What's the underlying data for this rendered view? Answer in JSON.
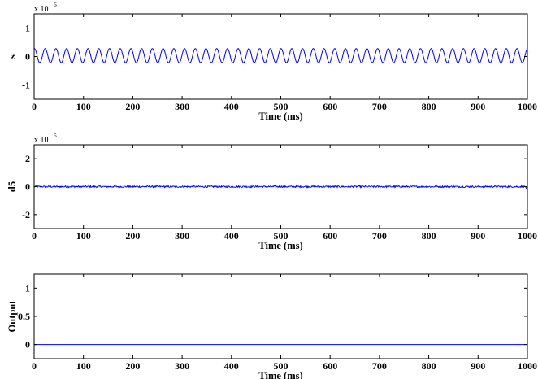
{
  "figure": {
    "background": "#ffffff"
  },
  "chart_data": [
    {
      "type": "line",
      "ylabel": "s",
      "xlabel": "Time (ms)",
      "xlim": [
        0,
        1000
      ],
      "ylim": [
        -1.5,
        1.5
      ],
      "y_scale_base": "x 10",
      "y_scale_exp": "6",
      "xticks": [
        0,
        100,
        200,
        300,
        400,
        500,
        600,
        700,
        800,
        900,
        1000
      ],
      "yticks": [
        -1,
        0,
        1
      ],
      "grid": false,
      "color": "#0000ff",
      "series": [
        {
          "signal": "sinusoid",
          "cycles_over_range": 46,
          "amplitude": 0.25,
          "offset": 0.03
        }
      ]
    },
    {
      "type": "line",
      "ylabel": "d5",
      "xlabel": "Time (ms)",
      "xlim": [
        0,
        1000
      ],
      "ylim": [
        -3,
        3
      ],
      "y_scale_base": "x 10",
      "y_scale_exp": "5",
      "xticks": [
        0,
        100,
        200,
        300,
        400,
        500,
        600,
        700,
        800,
        900,
        1000
      ],
      "yticks": [
        -2,
        0,
        2
      ],
      "grid": false,
      "color": "#0000ff",
      "series": [
        {
          "signal": "noise",
          "amplitude": 0.06,
          "offset": 0.0,
          "end_spike": 0.4
        }
      ]
    },
    {
      "type": "line",
      "ylabel": "Output",
      "xlabel": "Time (ms)",
      "xlim": [
        0,
        1000
      ],
      "ylim": [
        -0.25,
        1.25
      ],
      "xticks": [
        0,
        100,
        200,
        300,
        400,
        500,
        600,
        700,
        800,
        900,
        1000
      ],
      "yticks": [
        0,
        0.5,
        1
      ],
      "grid": false,
      "color": "#0000ff",
      "series": [
        {
          "signal": "constant",
          "value": 0
        }
      ]
    }
  ]
}
